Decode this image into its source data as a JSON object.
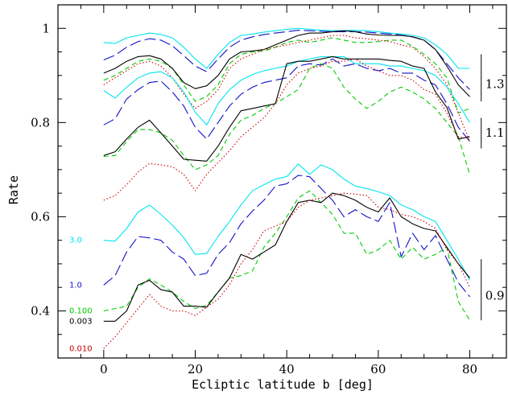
{
  "chart_data": {
    "type": "line",
    "title": "",
    "xlabel": "Ecliptic latitude b [deg]",
    "ylabel": "Rate",
    "xlim": [
      -10,
      88
    ],
    "ylim": [
      0.3,
      1.05
    ],
    "x_ticks": [
      0,
      20,
      40,
      60,
      80
    ],
    "x_tick_labels": [
      "0",
      "20",
      "40",
      "60",
      "80"
    ],
    "y_ticks": [
      0.4,
      0.6,
      0.8,
      1.0
    ],
    "y_tick_labels": [
      "0.4",
      "0.6",
      "0.8",
      "1"
    ],
    "grid": false,
    "legend": "none",
    "colors": {
      "3.0": "#00e5ee",
      "1.0": "#1010c8",
      "0.100": "#00cc00",
      "0.003": "#000000",
      "0.010": "#cc0000"
    },
    "series_labels": [
      {
        "text": "3.0",
        "color": "#00e5ee",
        "y": 0.55
      },
      {
        "text": "1.0",
        "color": "#1010c8",
        "y": 0.455
      },
      {
        "text": "0.100",
        "color": "#00cc00",
        "y": 0.4
      },
      {
        "text": "0.003",
        "color": "#000000",
        "y": 0.378
      },
      {
        "text": "0.010",
        "color": "#cc0000",
        "y": 0.32
      }
    ],
    "groups": [
      {
        "label": "1.3",
        "bracket": [
          0.845,
          0.945
        ],
        "label_y": 0.882
      },
      {
        "label": "1.1",
        "bracket": [
          0.745,
          0.81
        ],
        "label_y": 0.778
      },
      {
        "label": "0.9",
        "bracket": [
          0.38,
          0.51
        ],
        "label_y": 0.432
      }
    ],
    "x": [
      0,
      2.5,
      5,
      7.5,
      10,
      12.5,
      15,
      17.5,
      20,
      22.5,
      25,
      27.5,
      30,
      32.5,
      35,
      37.5,
      40,
      42.5,
      45,
      47.5,
      50,
      52.5,
      55,
      57.5,
      60,
      62.5,
      65,
      67.5,
      70,
      72.5,
      75,
      77.5,
      80
    ],
    "series": [
      {
        "group": "1.3",
        "color_key": "3.0",
        "style": "solid",
        "values": [
          0.97,
          0.968,
          0.98,
          0.985,
          0.99,
          0.987,
          0.98,
          0.96,
          0.935,
          0.915,
          0.945,
          0.97,
          0.985,
          0.988,
          0.992,
          0.995,
          0.998,
          1.0,
          0.998,
          0.996,
          0.995,
          0.995,
          0.996,
          0.995,
          0.993,
          0.99,
          0.988,
          0.985,
          0.98,
          0.965,
          0.945,
          0.915,
          0.915
        ]
      },
      {
        "group": "1.3",
        "color_key": "1.0",
        "style": "longdash",
        "values": [
          0.933,
          0.943,
          0.96,
          0.972,
          0.978,
          0.975,
          0.963,
          0.942,
          0.92,
          0.908,
          0.935,
          0.96,
          0.975,
          0.982,
          0.987,
          0.99,
          0.993,
          0.996,
          0.995,
          0.994,
          0.993,
          0.993,
          0.993,
          0.992,
          0.99,
          0.988,
          0.986,
          0.982,
          0.975,
          0.955,
          0.925,
          0.895,
          0.87
        ]
      },
      {
        "group": "1.3",
        "color_key": "0.100",
        "style": "dashed",
        "values": [
          0.89,
          0.9,
          0.915,
          0.93,
          0.935,
          0.93,
          0.915,
          0.88,
          0.845,
          0.855,
          0.88,
          0.925,
          0.945,
          0.95,
          0.952,
          0.96,
          0.97,
          0.975,
          0.97,
          0.975,
          0.98,
          0.975,
          0.97,
          0.97,
          0.972,
          0.975,
          0.975,
          0.962,
          0.945,
          0.925,
          0.895,
          0.82,
          0.83
        ]
      },
      {
        "group": "1.3",
        "color_key": "0.003",
        "style": "solid",
        "values": [
          0.905,
          0.915,
          0.93,
          0.94,
          0.942,
          0.935,
          0.915,
          0.885,
          0.872,
          0.878,
          0.9,
          0.935,
          0.95,
          0.952,
          0.955,
          0.965,
          0.975,
          0.985,
          0.99,
          0.99,
          0.993,
          0.995,
          0.993,
          0.988,
          0.986,
          0.985,
          0.985,
          0.982,
          0.975,
          0.955,
          0.92,
          0.88,
          0.855
        ]
      },
      {
        "group": "1.3",
        "color_key": "0.010",
        "style": "dotted",
        "values": [
          0.88,
          0.895,
          0.91,
          0.925,
          0.93,
          0.92,
          0.895,
          0.86,
          0.83,
          0.845,
          0.87,
          0.915,
          0.935,
          0.945,
          0.955,
          0.96,
          0.965,
          0.97,
          0.975,
          0.98,
          0.985,
          0.985,
          0.98,
          0.978,
          0.975,
          0.972,
          0.965,
          0.96,
          0.94,
          0.915,
          0.88,
          0.82,
          0.76
        ]
      },
      {
        "group": "1.1",
        "color_key": "3.0",
        "style": "solid",
        "values": [
          0.868,
          0.852,
          0.875,
          0.895,
          0.905,
          0.908,
          0.895,
          0.865,
          0.822,
          0.795,
          0.84,
          0.87,
          0.89,
          0.902,
          0.91,
          0.915,
          0.92,
          0.93,
          0.935,
          0.94,
          0.94,
          0.94,
          0.925,
          0.925,
          0.925,
          0.92,
          0.92,
          0.915,
          0.91,
          0.9,
          0.875,
          0.84,
          0.8
        ]
      },
      {
        "group": "1.1",
        "color_key": "1.0",
        "style": "longdash",
        "values": [
          0.795,
          0.808,
          0.85,
          0.87,
          0.885,
          0.888,
          0.865,
          0.835,
          0.79,
          0.765,
          0.8,
          0.835,
          0.86,
          0.875,
          0.885,
          0.89,
          0.895,
          0.92,
          0.925,
          0.922,
          0.935,
          0.92,
          0.925,
          0.915,
          0.91,
          0.915,
          0.905,
          0.905,
          0.89,
          0.88,
          0.84,
          0.79,
          0.76
        ]
      },
      {
        "group": "1.1",
        "color_key": "0.100",
        "style": "dashed",
        "values": [
          0.728,
          0.73,
          0.76,
          0.785,
          0.785,
          0.778,
          0.762,
          0.73,
          0.7,
          0.71,
          0.73,
          0.775,
          0.805,
          0.815,
          0.83,
          0.84,
          0.855,
          0.87,
          0.915,
          0.925,
          0.915,
          0.875,
          0.85,
          0.83,
          0.845,
          0.865,
          0.875,
          0.865,
          0.85,
          0.83,
          0.8,
          0.77,
          0.69
        ]
      },
      {
        "group": "1.1",
        "color_key": "0.003",
        "style": "solid",
        "values": [
          0.73,
          0.738,
          0.765,
          0.79,
          0.805,
          0.778,
          0.75,
          0.722,
          0.72,
          0.718,
          0.75,
          0.79,
          0.825,
          0.83,
          0.835,
          0.84,
          0.925,
          0.93,
          0.93,
          0.935,
          0.94,
          0.935,
          0.935,
          0.935,
          0.935,
          0.932,
          0.93,
          0.92,
          0.915,
          0.865,
          0.832,
          0.765,
          0.77
        ]
      },
      {
        "group": "1.1",
        "color_key": "0.010",
        "style": "dotted",
        "values": [
          0.635,
          0.645,
          0.668,
          0.695,
          0.713,
          0.71,
          0.706,
          0.69,
          0.655,
          0.69,
          0.715,
          0.74,
          0.77,
          0.79,
          0.81,
          0.84,
          0.88,
          0.905,
          0.915,
          0.92,
          0.93,
          0.93,
          0.935,
          0.92,
          0.91,
          0.9,
          0.9,
          0.89,
          0.87,
          0.86,
          0.82,
          0.77,
          0.765
        ]
      },
      {
        "group": "0.9",
        "color_key": "3.0",
        "style": "solid",
        "values": [
          0.55,
          0.548,
          0.575,
          0.61,
          0.625,
          0.605,
          0.582,
          0.556,
          0.52,
          0.522,
          0.558,
          0.59,
          0.625,
          0.655,
          0.668,
          0.68,
          0.685,
          0.712,
          0.69,
          0.71,
          0.7,
          0.68,
          0.665,
          0.66,
          0.653,
          0.645,
          0.625,
          0.615,
          0.6,
          0.59,
          0.55,
          0.51,
          0.465
        ]
      },
      {
        "group": "0.9",
        "color_key": "1.0",
        "style": "longdash",
        "values": [
          0.455,
          0.475,
          0.525,
          0.558,
          0.555,
          0.55,
          0.525,
          0.51,
          0.475,
          0.48,
          0.52,
          0.545,
          0.585,
          0.612,
          0.635,
          0.665,
          0.67,
          0.688,
          0.685,
          0.66,
          0.635,
          0.6,
          0.615,
          0.6,
          0.59,
          0.63,
          0.515,
          0.565,
          0.53,
          0.56,
          0.51,
          0.46,
          0.43
        ]
      },
      {
        "group": "0.9",
        "color_key": "0.100",
        "style": "dashed",
        "values": [
          0.4,
          0.405,
          0.41,
          0.45,
          0.468,
          0.455,
          0.44,
          0.42,
          0.405,
          0.412,
          0.44,
          0.47,
          0.475,
          0.485,
          0.535,
          0.565,
          0.6,
          0.64,
          0.655,
          0.63,
          0.605,
          0.565,
          0.565,
          0.52,
          0.53,
          0.55,
          0.51,
          0.535,
          0.51,
          0.52,
          0.535,
          0.42,
          0.38
        ]
      },
      {
        "group": "0.9",
        "color_key": "0.003",
        "style": "solid",
        "values": [
          0.378,
          0.378,
          0.4,
          0.455,
          0.465,
          0.445,
          0.44,
          0.41,
          0.41,
          0.408,
          0.44,
          0.47,
          0.52,
          0.51,
          0.525,
          0.54,
          0.59,
          0.63,
          0.635,
          0.63,
          0.65,
          0.645,
          0.635,
          0.62,
          0.61,
          0.64,
          0.6,
          0.585,
          0.575,
          0.57,
          0.535,
          0.5,
          0.47
        ]
      },
      {
        "group": "0.9",
        "color_key": "0.010",
        "style": "dotted",
        "values": [
          0.32,
          0.345,
          0.375,
          0.405,
          0.435,
          0.41,
          0.4,
          0.4,
          0.39,
          0.408,
          0.425,
          0.455,
          0.5,
          0.53,
          0.57,
          0.58,
          0.59,
          0.62,
          0.635,
          0.64,
          0.645,
          0.65,
          0.648,
          0.645,
          0.62,
          0.615,
          0.605,
          0.6,
          0.59,
          0.575,
          0.53,
          0.5,
          0.45
        ]
      }
    ]
  }
}
